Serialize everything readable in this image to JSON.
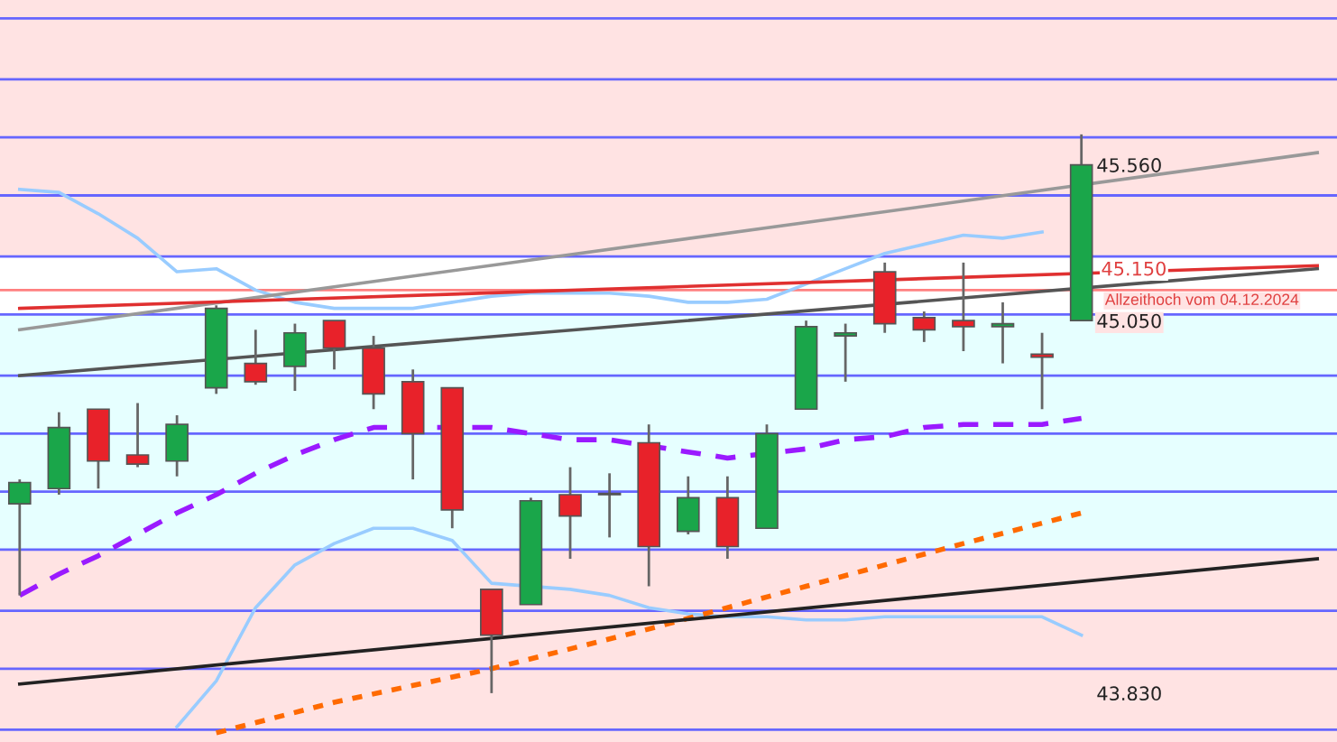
{
  "chart_data": {
    "type": "candlestick",
    "categories": [
      null,
      null,
      null,
      null,
      null,
      null,
      null,
      null,
      null,
      null,
      null,
      null,
      null,
      null,
      null,
      null,
      null,
      null,
      null,
      null,
      null,
      null,
      null,
      null,
      null,
      null,
      null,
      null,
      null,
      null,
      null,
      null,
      null,
      null
    ],
    "ohlc": [
      [
        44.45,
        44.53,
        44.15,
        44.52
      ],
      [
        44.5,
        44.75,
        44.48,
        44.7
      ],
      [
        44.76,
        44.76,
        44.5,
        44.59
      ],
      [
        44.61,
        44.78,
        44.57,
        44.58
      ],
      [
        44.59,
        44.74,
        44.54,
        44.71
      ],
      [
        44.83,
        45.1,
        44.81,
        45.09
      ],
      [
        44.91,
        45.02,
        44.84,
        44.85
      ],
      [
        44.9,
        45.04,
        44.82,
        45.01
      ],
      [
        45.05,
        45.05,
        44.89,
        44.96
      ],
      [
        44.96,
        45.0,
        44.76,
        44.81
      ],
      [
        44.85,
        44.89,
        44.53,
        44.68
      ],
      [
        44.83,
        44.83,
        44.37,
        44.43
      ],
      [
        44.17,
        44.17,
        43.83,
        44.02
      ],
      [
        44.12,
        44.47,
        44.12,
        44.46
      ],
      [
        44.48,
        44.57,
        44.27,
        44.41
      ],
      [
        44.48,
        44.55,
        44.34,
        44.48
      ],
      [
        44.65,
        44.71,
        44.18,
        44.31
      ],
      [
        44.36,
        44.54,
        44.35,
        44.47
      ],
      [
        44.47,
        44.54,
        44.27,
        44.31
      ],
      [
        44.37,
        44.71,
        44.37,
        44.68
      ],
      [
        44.76,
        45.05,
        44.76,
        45.03
      ],
      [
        45.0,
        45.04,
        44.85,
        45.01
      ],
      [
        45.21,
        45.24,
        45.01,
        45.04
      ],
      [
        45.06,
        45.08,
        44.98,
        45.02
      ],
      [
        45.05,
        45.24,
        44.95,
        45.03
      ],
      [
        45.03,
        45.11,
        44.91,
        45.04
      ],
      [
        44.94,
        45.01,
        44.76,
        44.93
      ],
      [
        45.05,
        45.66,
        45.05,
        45.56
      ],
      null,
      null,
      null,
      null,
      null,
      null
    ],
    "colors": [
      "#1aa64a",
      "#1aa64a",
      "#e8222a",
      "#e8222a",
      "#1aa64a",
      "#1aa64a",
      "#e8222a",
      "#1aa64a",
      "#e8222a",
      "#e8222a",
      "#e8222a",
      "#e8222a",
      "#e8222a",
      "#1aa64a",
      "#e8222a",
      "#1f1f80",
      "#e8222a",
      "#1aa64a",
      "#e8222a",
      "#1aa64a",
      "#1aa64a",
      "#1aa64a",
      "#e8222a",
      "#e8222a",
      "#e8222a",
      "#1aa64a",
      "#e8222a",
      "#1aa64a",
      null,
      null,
      null,
      null,
      null,
      null
    ],
    "ylim": [
      43.67,
      46.1
    ],
    "yticks": [
      {
        "value": 43.71,
        "label": null
      },
      {
        "value": 43.91,
        "label": null
      },
      {
        "value": 44.1,
        "label": null
      },
      {
        "value": 44.3,
        "label": null
      },
      {
        "value": 44.49,
        "label": null
      },
      {
        "value": 44.68,
        "label": null
      },
      {
        "value": 44.87,
        "label": null
      },
      {
        "value": 45.07,
        "label": null
      },
      {
        "value": 45.26,
        "label": null
      },
      {
        "value": 45.46,
        "label": null
      },
      {
        "value": 45.65,
        "label": null
      },
      {
        "value": 45.84,
        "label": null
      },
      {
        "value": 46.04,
        "label": null
      },
      {
        "value": 43.83,
        "label": "43.830"
      },
      {
        "value": 45.05,
        "label": "45.050"
      },
      {
        "value": 45.56,
        "label": "45.560"
      }
    ],
    "grid": "y",
    "legend": false,
    "bands": [
      {
        "axis": "y",
        "from": 45.07,
        "to": 45.26,
        "color": "#ffffff"
      },
      {
        "axis": "y",
        "from": 44.3,
        "to": 45.07,
        "color": "#e6ffff"
      }
    ],
    "series": [
      {
        "type": "line",
        "color": "#9a1aff",
        "line_style": "dashed",
        "values": [
          44.15,
          44.22,
          44.28,
          44.35,
          44.42,
          44.48,
          44.55,
          44.61,
          44.66,
          44.7,
          null,
          null,
          44.7,
          44.68,
          44.66,
          44.66,
          null,
          44.62,
          44.6,
          null,
          44.63,
          44.66,
          44.67,
          44.7,
          44.71,
          44.71,
          44.71,
          44.73,
          null,
          null,
          null,
          null,
          null,
          null
        ]
      },
      {
        "type": "line",
        "color": "#99ccff",
        "line_style": "solid",
        "values": [
          45.48,
          45.47,
          45.4,
          45.32,
          45.21,
          45.22,
          45.15,
          45.11,
          45.09,
          45.09,
          45.09,
          45.11,
          45.13,
          45.14,
          45.14,
          45.14,
          45.13,
          45.11,
          45.11,
          45.12,
          45.17,
          45.22,
          45.27,
          45.3,
          45.33,
          45.32,
          45.34,
          null,
          null,
          null,
          null,
          null,
          null,
          null
        ]
      },
      {
        "type": "line",
        "color": "#99ccff",
        "line_style": "solid",
        "values": [
          null,
          null,
          null,
          null,
          43.72,
          43.87,
          44.11,
          44.25,
          44.32,
          44.37,
          44.37,
          44.33,
          44.19,
          null,
          44.17,
          44.15,
          44.11,
          44.09,
          44.08,
          44.08,
          44.07,
          44.07,
          44.08,
          44.08,
          44.08,
          44.08,
          44.08,
          44.02,
          null,
          null,
          null,
          null,
          null,
          null
        ]
      },
      {
        "type": "line",
        "color": "#ff6a00",
        "line_style": "dotted",
        "values": [
          null,
          null,
          null,
          null,
          null,
          43.7,
          null,
          null,
          43.8,
          null,
          null,
          null,
          43.91,
          null,
          null,
          null,
          44.04,
          null,
          null,
          null,
          44.18,
          null,
          null,
          null,
          44.32,
          null,
          null,
          44.42,
          null,
          null,
          null,
          null,
          null,
          null
        ]
      },
      {
        "type": "line",
        "color": "#999999",
        "line_style": "solid",
        "values": [
          45.02,
          null,
          null,
          null,
          null,
          null,
          null,
          null,
          null,
          null,
          null,
          null,
          null,
          null,
          null,
          null,
          null,
          null,
          null,
          null,
          null,
          null,
          null,
          null,
          null,
          null,
          null,
          null,
          null,
          null,
          null,
          null,
          null,
          45.6
        ]
      },
      {
        "type": "line",
        "color": "#555555",
        "line_style": "solid",
        "values": [
          44.87,
          null,
          null,
          null,
          null,
          null,
          null,
          null,
          null,
          null,
          null,
          null,
          null,
          null,
          null,
          null,
          null,
          null,
          null,
          null,
          null,
          null,
          null,
          null,
          null,
          null,
          null,
          null,
          null,
          null,
          null,
          null,
          null,
          45.22
        ]
      },
      {
        "type": "line",
        "color": "#222222",
        "line_style": "solid",
        "values": [
          43.86,
          null,
          null,
          null,
          null,
          null,
          null,
          null,
          null,
          null,
          null,
          null,
          null,
          null,
          null,
          null,
          null,
          null,
          null,
          null,
          null,
          null,
          null,
          null,
          null,
          null,
          null,
          null,
          null,
          null,
          null,
          null,
          null,
          44.27
        ]
      },
      {
        "type": "line",
        "color": "#e03030",
        "line_style": "solid",
        "values": [
          45.09,
          null,
          null,
          null,
          null,
          null,
          null,
          null,
          null,
          null,
          null,
          null,
          null,
          null,
          null,
          null,
          null,
          null,
          null,
          null,
          null,
          null,
          null,
          null,
          null,
          null,
          null,
          null,
          null,
          null,
          null,
          null,
          null,
          45.23
        ]
      }
    ],
    "ref_lines": [
      {
        "axis": "y",
        "value": 45.15,
        "label": "45.150",
        "color": "#ff8080"
      }
    ],
    "annotations": [
      {
        "text": "Allzeithoch vom 04.12.2024",
        "y": 45.15
      }
    ]
  }
}
